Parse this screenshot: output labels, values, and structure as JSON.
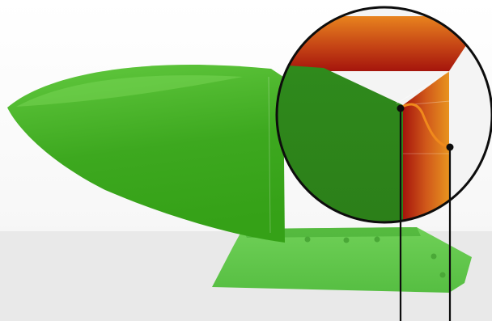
{
  "image": {
    "subject": "plough-share-blade",
    "colors": {
      "background_top": "#ffffff",
      "background_bottom": "#e6e6e6",
      "blade_green_light": "#62c93f",
      "blade_green": "#3da81f",
      "blade_green_dark": "#2a7f16",
      "base_green": "#5cc447",
      "edge_orange": "#e8831e",
      "edge_red": "#a5150c",
      "line_color": "#0d0d0d",
      "callout_curve": "#f08a1c"
    },
    "icons": [
      "magnifier-lens",
      "callout-pointer"
    ]
  }
}
